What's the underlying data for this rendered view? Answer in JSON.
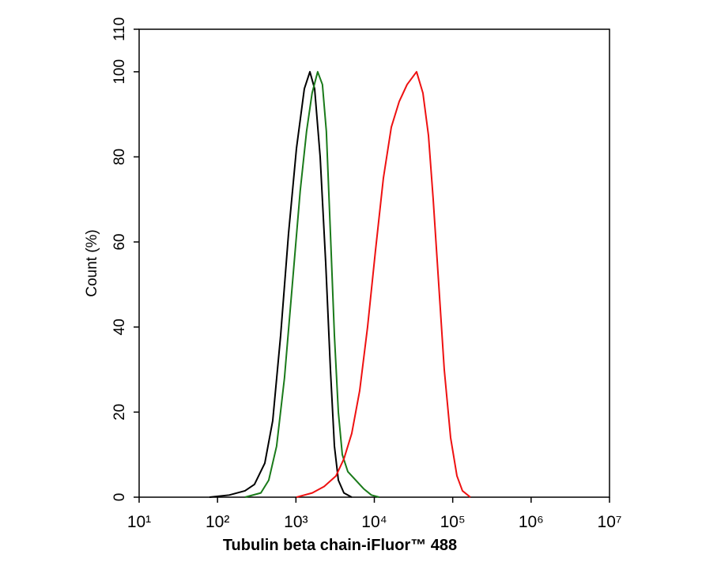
{
  "chart_data": {
    "type": "line",
    "x_label": "Tubulin beta chain-iFluor™ 488",
    "y_label": "Count  (%)",
    "x_scale": "log",
    "xlim": [
      10,
      10000000
    ],
    "xticks": [
      {
        "value": 10,
        "label": "10¹"
      },
      {
        "value": 100,
        "label": "10²"
      },
      {
        "value": 1000,
        "label": "10³"
      },
      {
        "value": 10000,
        "label": "10⁴"
      },
      {
        "value": 100000,
        "label": "10⁵"
      },
      {
        "value": 1000000,
        "label": "10⁶"
      },
      {
        "value": 10000000,
        "label": "10⁷"
      }
    ],
    "ylim": [
      0,
      110
    ],
    "yticks": [
      0,
      20,
      40,
      60,
      80,
      100,
      110
    ],
    "series": [
      {
        "color": "#000000",
        "x": [
          79,
          141,
          224,
          296,
          401,
          506,
          638,
          805,
          1016,
          1280,
          1507,
          1733,
          2038,
          2399,
          2756,
          3097,
          3477,
          4093,
          5155
        ],
        "values": [
          0,
          0.5,
          1.5,
          3,
          8,
          18,
          38,
          62,
          82,
          96,
          100,
          96,
          80,
          55,
          30,
          12,
          4,
          1,
          0
        ]
      },
      {
        "color": "#1a7a1a",
        "x": [
          224,
          357,
          450,
          567,
          714,
          900,
          1134,
          1367,
          1608,
          1894,
          2178,
          2444,
          2756,
          3097,
          3477,
          3904,
          4594,
          5786,
          7287,
          9176,
          11560
        ],
        "values": [
          0,
          1,
          4,
          12,
          28,
          50,
          72,
          86,
          95,
          100,
          97,
          86,
          62,
          38,
          20,
          10,
          6,
          4,
          2,
          0.5,
          0
        ]
      },
      {
        "color": "#ee1111",
        "x": [
          1016,
          1615,
          2289,
          3243,
          4093,
          5155,
          6500,
          8200,
          10350,
          13050,
          16480,
          20760,
          26180,
          34590,
          41690,
          49090,
          56370,
          66350,
          78000,
          93970,
          113200,
          133100,
          167900
        ],
        "values": [
          0,
          1,
          2.5,
          5,
          9,
          15,
          25,
          40,
          58,
          75,
          87,
          93,
          97,
          100,
          95,
          85,
          70,
          50,
          30,
          14,
          5,
          1.5,
          0
        ]
      }
    ]
  }
}
